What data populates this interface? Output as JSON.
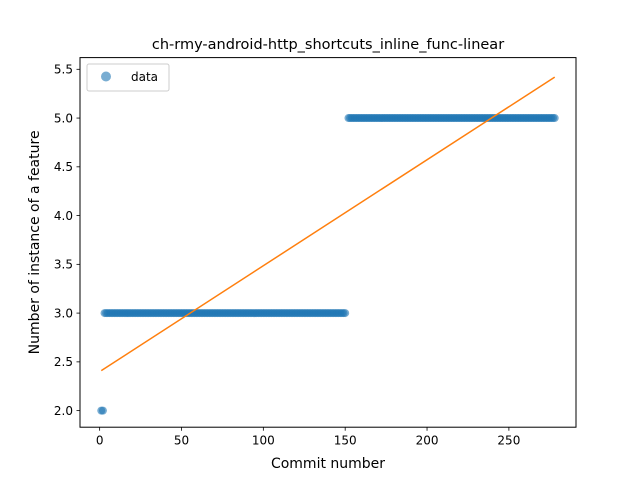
{
  "chart_data": {
    "type": "scatter",
    "title": "ch-rmy-android-http_shortcuts_inline_func-linear",
    "xlabel": "Commit number",
    "ylabel": "Number of instance of a feature",
    "xlim": [
      -12,
      291
    ],
    "ylim": [
      1.83,
      5.62
    ],
    "xticks": [
      0,
      50,
      100,
      150,
      200,
      250
    ],
    "yticks": [
      2.0,
      2.5,
      3.0,
      3.5,
      4.0,
      4.5,
      5.0,
      5.5
    ],
    "xtick_labels": [
      "0",
      "50",
      "100",
      "150",
      "200",
      "250"
    ],
    "ytick_labels": [
      "2.0",
      "2.5",
      "3.0",
      "3.5",
      "4.0",
      "4.5",
      "5.0",
      "5.5"
    ],
    "grid": false,
    "legend": {
      "location": "top-left",
      "entries": [
        {
          "label": "data",
          "marker": "circle",
          "color": "#1f77b4"
        }
      ]
    },
    "series": [
      {
        "name": "data",
        "kind": "scatter",
        "color": "#1f77b4",
        "opacity": 0.6,
        "segments": [
          {
            "x_start": 1,
            "x_end": 2,
            "step": 1,
            "y": 2.0
          },
          {
            "x_start": 3,
            "x_end": 150,
            "step": 1,
            "y": 3.0
          },
          {
            "x_start": 152,
            "x_end": 278,
            "step": 1,
            "y": 5.0
          }
        ]
      },
      {
        "kind": "line",
        "color": "#ff7f0e",
        "x": [
          1,
          278
        ],
        "y": [
          2.41,
          5.42
        ]
      }
    ]
  }
}
